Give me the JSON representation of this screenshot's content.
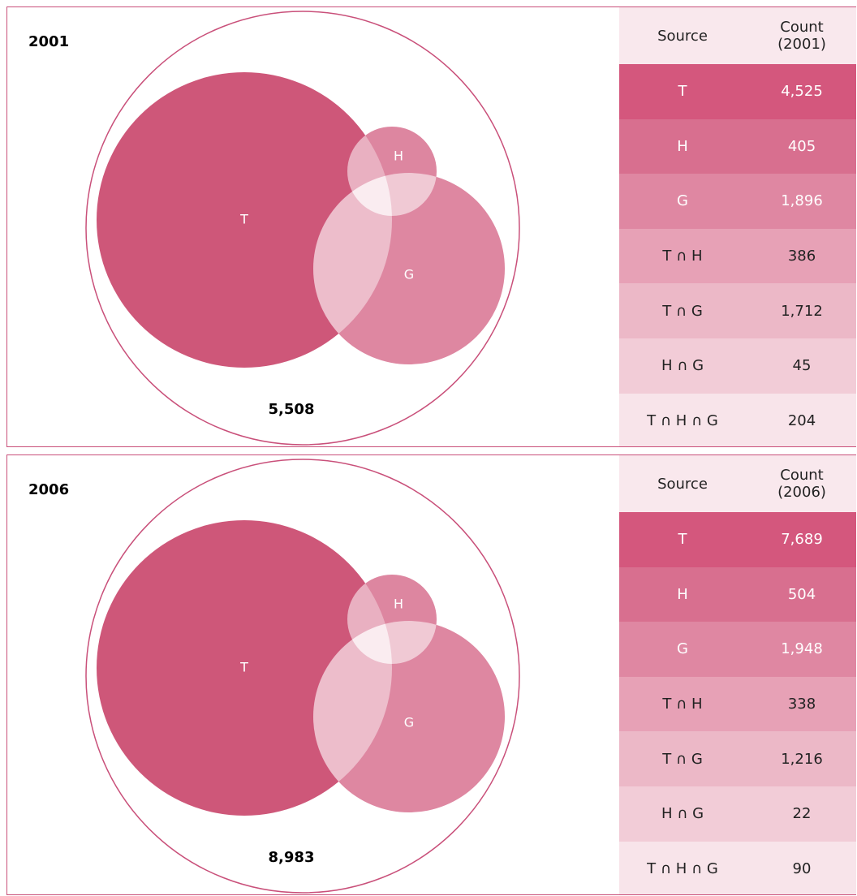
{
  "panels": [
    {
      "title": "2001",
      "total": "5,508",
      "venn": {
        "labels": [
          "T",
          "H",
          "G"
        ]
      },
      "table": {
        "header": [
          "Source",
          "Count (2001)"
        ],
        "rows": [
          [
            "T",
            "4,525"
          ],
          [
            "H",
            "405"
          ],
          [
            "G",
            "1,896"
          ],
          [
            "T ∩ H",
            "386"
          ],
          [
            "T ∩ G",
            "1,712"
          ],
          [
            "H ∩ G",
            "45"
          ],
          [
            "T ∩ H ∩ G",
            "204"
          ]
        ]
      }
    },
    {
      "title": "2006",
      "total": "8,983",
      "venn": {
        "labels": [
          "T",
          "H",
          "G"
        ]
      },
      "table": {
        "header": [
          "Source",
          "Count (2006)"
        ],
        "rows": [
          [
            "T",
            "7,689"
          ],
          [
            "H",
            "504"
          ],
          [
            "G",
            "1,948"
          ],
          [
            "T ∩ H",
            "338"
          ],
          [
            "T ∩ G",
            "1,216"
          ],
          [
            "H ∩ G",
            "22"
          ],
          [
            "T ∩ H ∩ G",
            "90"
          ]
        ]
      }
    }
  ]
}
